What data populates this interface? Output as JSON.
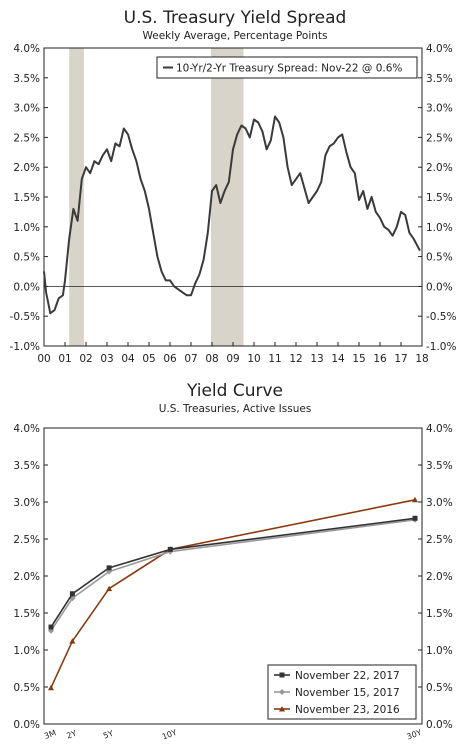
{
  "chart_data": [
    {
      "type": "line",
      "title": "U.S. Treasury Yield Spread",
      "subtitle": "Weekly Average, Percentage Points",
      "x_range": [
        2000,
        2018
      ],
      "ylim": [
        -1.0,
        4.0
      ],
      "y_ticks": [
        "4.0%",
        "3.5%",
        "3.0%",
        "2.5%",
        "2.0%",
        "1.5%",
        "1.0%",
        "0.5%",
        "0.0%",
        "-0.5%",
        "-1.0%"
      ],
      "x_ticks": [
        "00",
        "01",
        "02",
        "03",
        "04",
        "05",
        "06",
        "07",
        "08",
        "09",
        "10",
        "11",
        "12",
        "13",
        "14",
        "15",
        "16",
        "17",
        "18"
      ],
      "legend_position": "top-right",
      "recessions": [
        [
          2001.2,
          2001.9
        ],
        [
          2007.95,
          2009.5
        ]
      ],
      "series": [
        {
          "name": "10-Yr/2-Yr Treasury Spread: Nov-22 @ 0.6%",
          "color": "#3a3a3a",
          "x": [
            2000.0,
            2000.1,
            2000.3,
            2000.5,
            2000.7,
            2000.9,
            2001.0,
            2001.2,
            2001.4,
            2001.6,
            2001.8,
            2002.0,
            2002.2,
            2002.4,
            2002.6,
            2002.8,
            2003.0,
            2003.2,
            2003.4,
            2003.6,
            2003.8,
            2004.0,
            2004.2,
            2004.4,
            2004.6,
            2004.8,
            2005.0,
            2005.2,
            2005.4,
            2005.6,
            2005.8,
            2006.0,
            2006.2,
            2006.4,
            2006.6,
            2006.8,
            2007.0,
            2007.2,
            2007.4,
            2007.6,
            2007.8,
            2008.0,
            2008.2,
            2008.4,
            2008.6,
            2008.8,
            2009.0,
            2009.2,
            2009.4,
            2009.6,
            2009.8,
            2010.0,
            2010.2,
            2010.4,
            2010.6,
            2010.8,
            2011.0,
            2011.2,
            2011.4,
            2011.6,
            2011.8,
            2012.0,
            2012.2,
            2012.4,
            2012.6,
            2012.8,
            2013.0,
            2013.2,
            2013.4,
            2013.6,
            2013.8,
            2014.0,
            2014.2,
            2014.4,
            2014.6,
            2014.8,
            2015.0,
            2015.2,
            2015.4,
            2015.6,
            2015.8,
            2016.0,
            2016.2,
            2016.4,
            2016.6,
            2016.8,
            2017.0,
            2017.2,
            2017.4,
            2017.6,
            2017.9
          ],
          "y": [
            0.25,
            -0.1,
            -0.45,
            -0.4,
            -0.2,
            -0.15,
            0.1,
            0.8,
            1.3,
            1.1,
            1.8,
            2.0,
            1.9,
            2.1,
            2.05,
            2.2,
            2.3,
            2.1,
            2.4,
            2.35,
            2.65,
            2.55,
            2.3,
            2.1,
            1.8,
            1.6,
            1.3,
            0.9,
            0.5,
            0.25,
            0.1,
            0.1,
            0.0,
            -0.05,
            -0.1,
            -0.15,
            -0.15,
            0.05,
            0.2,
            0.45,
            0.9,
            1.6,
            1.7,
            1.4,
            1.6,
            1.75,
            2.3,
            2.55,
            2.7,
            2.65,
            2.5,
            2.8,
            2.75,
            2.6,
            2.3,
            2.45,
            2.85,
            2.75,
            2.5,
            2.0,
            1.7,
            1.8,
            1.9,
            1.65,
            1.4,
            1.5,
            1.6,
            1.75,
            2.2,
            2.35,
            2.4,
            2.5,
            2.55,
            2.25,
            2.0,
            1.9,
            1.45,
            1.6,
            1.3,
            1.5,
            1.25,
            1.15,
            1.0,
            0.95,
            0.85,
            1.0,
            1.25,
            1.2,
            0.9,
            0.8,
            0.6
          ]
        }
      ]
    },
    {
      "type": "line",
      "title": "Yield Curve",
      "subtitle": "U.S. Treasuries, Active Issues",
      "categories": [
        "3M",
        "2Y",
        "5Y",
        "10Y",
        "30Y"
      ],
      "x": [
        0.25,
        2,
        5,
        10,
        30
      ],
      "ylim": [
        0.0,
        4.0
      ],
      "y_ticks": [
        "4.0%",
        "3.5%",
        "3.0%",
        "2.5%",
        "2.0%",
        "1.5%",
        "1.0%",
        "0.5%",
        "0.0%"
      ],
      "legend_position": "bottom-right",
      "series": [
        {
          "name": "November 22, 2017",
          "color": "#333333",
          "values": [
            1.31,
            1.76,
            2.11,
            2.36,
            2.78
          ]
        },
        {
          "name": "November 15, 2017",
          "color": "#999999",
          "values": [
            1.26,
            1.7,
            2.06,
            2.33,
            2.76
          ]
        },
        {
          "name": "November 23, 2016",
          "color": "#8b3a0f",
          "values": [
            0.49,
            1.12,
            1.83,
            2.36,
            3.03
          ]
        }
      ]
    }
  ]
}
